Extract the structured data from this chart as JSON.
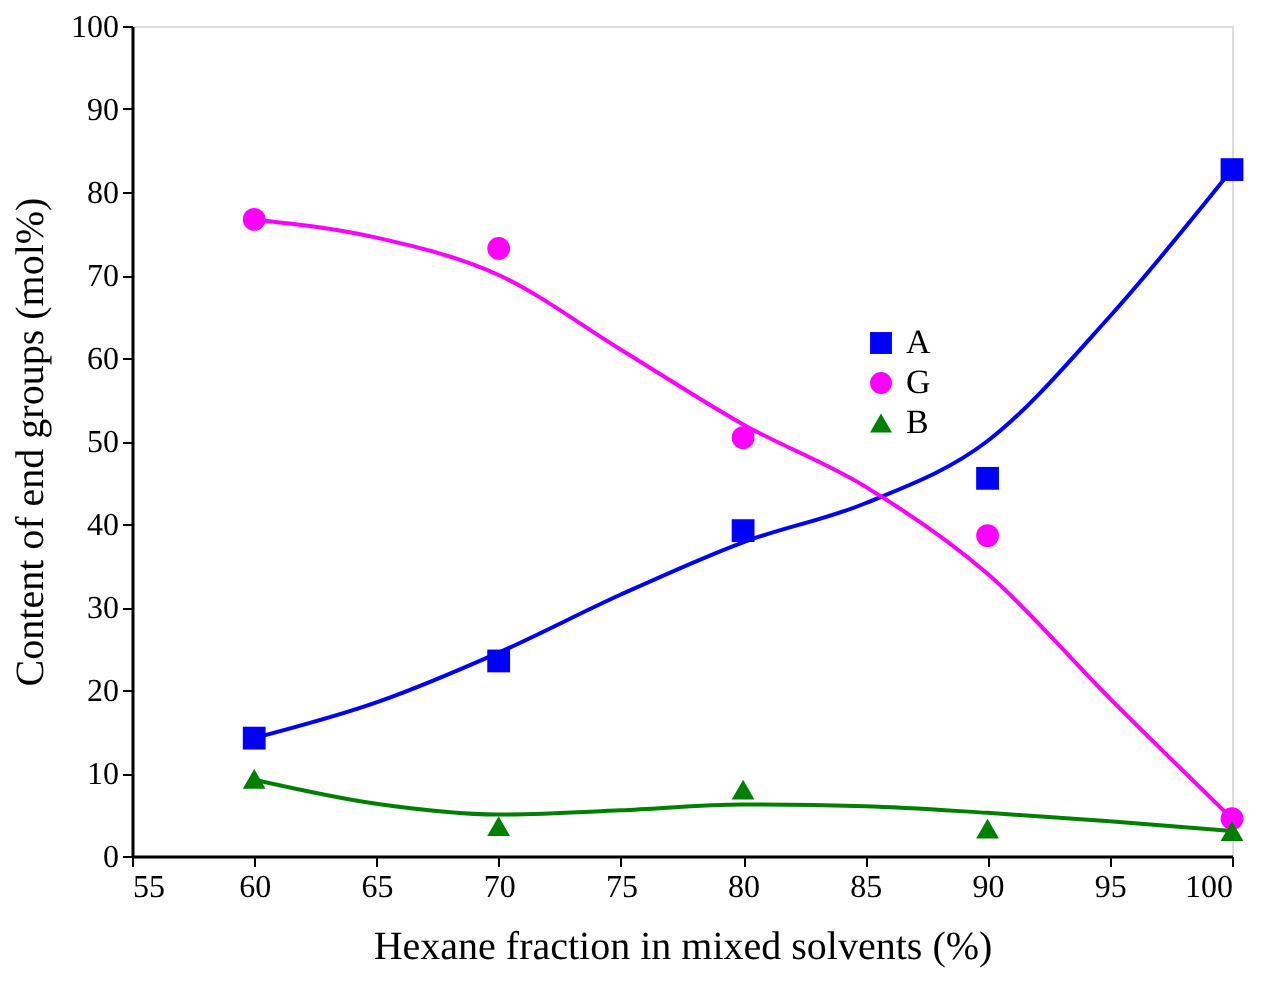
{
  "chart_data": {
    "type": "scatter",
    "xlabel": "Hexane fraction in mixed solvents (%)",
    "ylabel": "Content of end groups (mol%)",
    "xlim": [
      55,
      100
    ],
    "xticks": [
      55,
      60,
      65,
      70,
      75,
      80,
      85,
      90,
      95,
      100
    ],
    "ylim": [
      0,
      100
    ],
    "yticks": [
      0,
      10,
      20,
      30,
      40,
      50,
      60,
      70,
      80,
      90,
      100
    ],
    "grid": false,
    "legend": "top right",
    "x": [
      60,
      70,
      80,
      90,
      100
    ],
    "series": [
      {
        "name": "A",
        "marker": "square",
        "color": "#0000ff",
        "values": [
          14.2,
          23.5,
          39.2,
          45.5,
          82.7
        ]
      },
      {
        "name": "G",
        "marker": "circle",
        "color": "#ff00ff",
        "values": [
          76.7,
          73.2,
          50.4,
          38.6,
          4.5
        ]
      },
      {
        "name": "B",
        "marker": "triangle",
        "color": "#008000",
        "values": [
          9.3,
          3.6,
          8.0,
          3.3,
          3.0
        ]
      },
      {
        "type": "line",
        "color": "#0000ff",
        "x": [
          60,
          65,
          70,
          75,
          80,
          85,
          90,
          95,
          100
        ],
        "values": [
          14.2,
          18.5,
          24.5,
          31.5,
          37.8,
          42.5,
          50,
          65,
          82.7
        ]
      },
      {
        "type": "line",
        "color": "#ff00ff",
        "x": [
          60,
          65,
          70,
          75,
          80,
          85,
          90,
          95,
          100
        ],
        "values": [
          76.7,
          74.5,
          70,
          61,
          52,
          44.5,
          34,
          19,
          4.5
        ]
      },
      {
        "type": "line",
        "color": "#008000",
        "x": [
          60,
          65,
          70,
          75,
          80,
          85,
          90,
          95,
          100
        ],
        "values": [
          9.2,
          6.3,
          5.0,
          5.5,
          6.2,
          6.0,
          5.2,
          4.2,
          3.0
        ]
      }
    ]
  }
}
